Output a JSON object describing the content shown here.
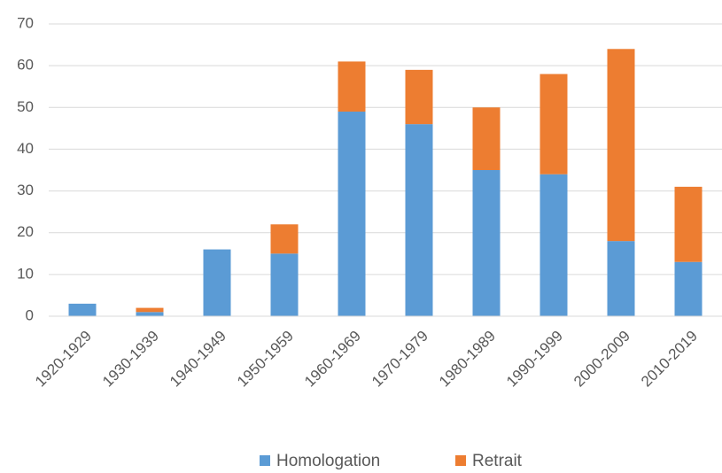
{
  "chart_data": {
    "type": "stacked_bar",
    "categories": [
      "1920-1929",
      "1930-1939",
      "1940-1949",
      "1950-1959",
      "1960-1969",
      "1970-1979",
      "1980-1989",
      "1990-1999",
      "2000-2009",
      "2010-2019"
    ],
    "series": [
      {
        "name": "Homologation",
        "color": "#5b9bd5",
        "values": [
          3,
          1,
          16,
          15,
          49,
          46,
          35,
          34,
          18,
          13
        ]
      },
      {
        "name": "Retrait",
        "color": "#ed7d31",
        "values": [
          0,
          1,
          0,
          7,
          12,
          13,
          15,
          24,
          46,
          18
        ]
      }
    ],
    "ylim": [
      0,
      70
    ],
    "yticks": [
      0,
      10,
      20,
      30,
      40,
      50,
      60,
      70
    ],
    "grid": true,
    "legend": "bottom"
  }
}
